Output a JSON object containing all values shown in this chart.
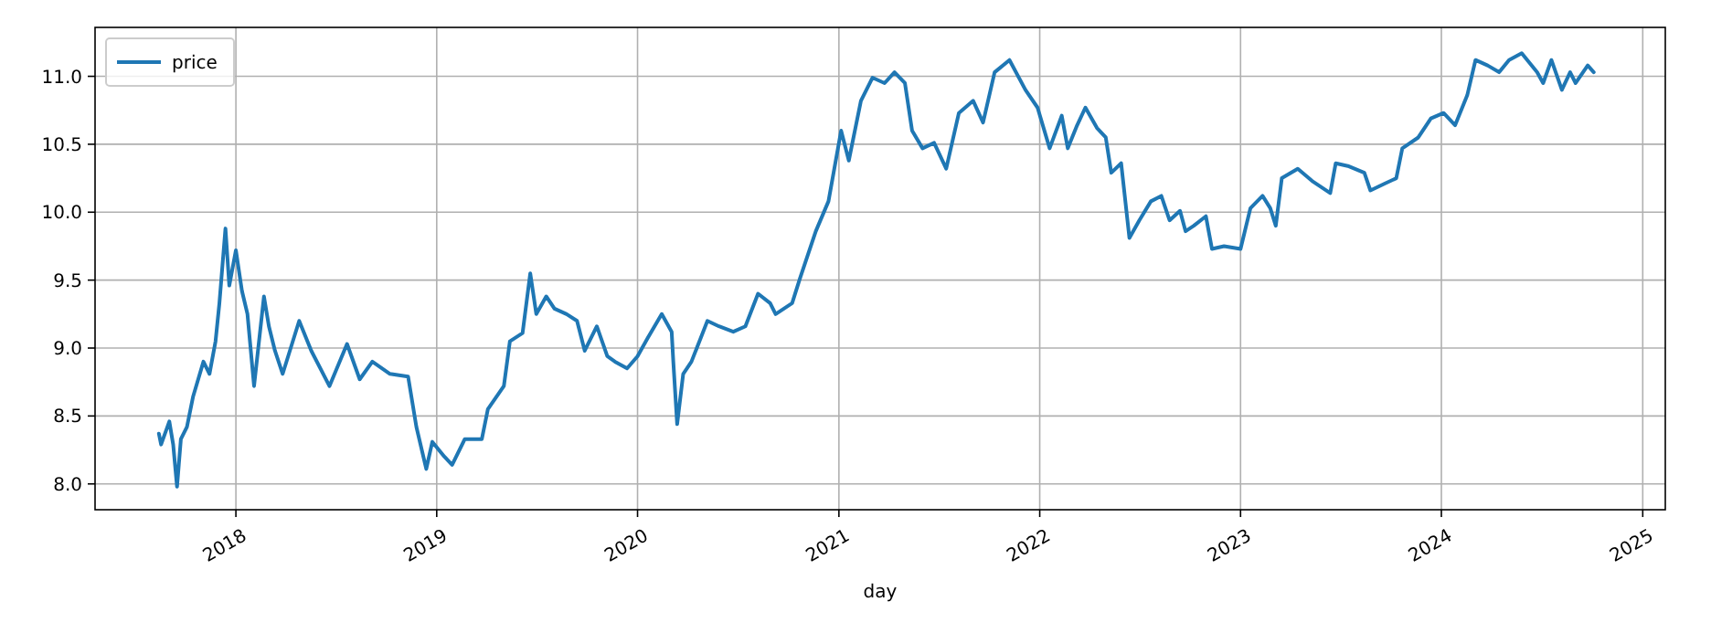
{
  "chart_data": {
    "type": "line",
    "xlabel": "day",
    "legend": "top left",
    "grid": true,
    "xlim": [
      "2017-04-20",
      "2025-02-11"
    ],
    "xticks": [
      "2018",
      "2019",
      "2020",
      "2021",
      "2022",
      "2023",
      "2024",
      "2025"
    ],
    "ylim": [
      7.81,
      11.36
    ],
    "yticks": [
      {
        "value": 8,
        "label": "8.0"
      },
      {
        "value": 8.5,
        "label": "8.5"
      },
      {
        "value": 9,
        "label": "9.0"
      },
      {
        "value": 9.5,
        "label": "9.5"
      },
      {
        "value": 10,
        "label": "10.0"
      },
      {
        "value": 10.5,
        "label": "10.5"
      },
      {
        "value": 11,
        "label": "11.0"
      }
    ],
    "x": [
      "2017-08-14",
      "2017-08-18",
      "2017-09-02",
      "2017-09-09",
      "2017-09-16",
      "2017-09-23",
      "2017-10-04",
      "2017-10-15",
      "2017-11-03",
      "2017-11-14",
      "2017-11-25",
      "2017-12-02",
      "2017-12-13",
      "2017-12-20",
      "2018-01-01",
      "2018-01-12",
      "2018-01-22",
      "2018-02-03",
      "2018-02-21",
      "2018-03-02",
      "2018-03-13",
      "2018-03-27",
      "2018-04-26",
      "2018-05-18",
      "2018-06-20",
      "2018-07-22",
      "2018-08-14",
      "2018-09-06",
      "2018-10-08",
      "2018-11-10",
      "2018-11-25",
      "2018-12-13",
      "2018-12-24",
      "2019-01-15",
      "2019-01-29",
      "2019-02-21",
      "2019-03-24",
      "2019-04-04",
      "2019-05-03",
      "2019-05-14",
      "2019-06-06",
      "2019-06-20",
      "2019-07-01",
      "2019-07-19",
      "2019-08-03",
      "2019-08-25",
      "2019-09-13",
      "2019-09-27",
      "2019-10-19",
      "2019-11-07",
      "2019-11-21",
      "2019-12-13",
      "2020-01-01",
      "2020-01-19",
      "2020-02-14",
      "2020-03-03",
      "2020-03-06",
      "2020-03-13",
      "2020-03-24",
      "2020-04-08",
      "2020-05-07",
      "2020-05-28",
      "2020-06-23",
      "2020-07-15",
      "2020-08-07",
      "2020-08-29",
      "2020-09-08",
      "2020-10-08",
      "2020-10-22",
      "2020-11-20",
      "2020-12-13",
      "2021-01-05",
      "2021-01-19",
      "2021-02-10",
      "2021-03-03",
      "2021-03-25",
      "2021-04-12",
      "2021-05-01",
      "2021-05-14",
      "2021-06-02",
      "2021-06-23",
      "2021-07-15",
      "2021-08-07",
      "2021-09-02",
      "2021-09-20",
      "2021-10-11",
      "2021-11-07",
      "2021-12-06",
      "2021-12-28",
      "2022-01-19",
      "2022-02-10",
      "2022-02-21",
      "2022-03-10",
      "2022-03-25",
      "2022-04-15",
      "2022-05-01",
      "2022-05-11",
      "2022-05-29",
      "2022-06-13",
      "2022-07-01",
      "2022-07-22",
      "2022-08-10",
      "2022-08-25",
      "2022-09-13",
      "2022-09-23",
      "2022-10-08",
      "2022-10-30",
      "2022-11-10",
      "2022-12-02",
      "2023-01-01",
      "2023-01-19",
      "2023-02-10",
      "2023-02-24",
      "2023-03-06",
      "2023-03-17",
      "2023-04-15",
      "2023-05-11",
      "2023-06-13",
      "2023-06-23",
      "2023-07-15",
      "2023-08-14",
      "2023-08-25",
      "2023-09-20",
      "2023-10-11",
      "2023-10-22",
      "2023-11-20",
      "2023-12-13",
      "2024-01-05",
      "2024-01-26",
      "2024-02-17",
      "2024-03-03",
      "2024-03-25",
      "2024-04-15",
      "2024-05-03",
      "2024-05-26",
      "2024-06-23",
      "2024-07-04",
      "2024-07-19",
      "2024-08-07",
      "2024-08-22",
      "2024-09-01",
      "2024-09-23",
      "2024-10-04"
    ],
    "series": [
      {
        "name": "price",
        "color": "#1f77b4",
        "values": [
          8.37,
          8.29,
          8.46,
          8.29,
          7.98,
          8.33,
          8.42,
          8.64,
          8.9,
          8.81,
          9.05,
          9.33,
          9.88,
          9.46,
          9.72,
          9.42,
          9.25,
          8.72,
          9.38,
          9.16,
          8.98,
          8.81,
          9.2,
          8.98,
          8.72,
          9.03,
          8.77,
          8.9,
          8.81,
          8.79,
          8.42,
          8.11,
          8.31,
          8.2,
          8.14,
          8.33,
          8.33,
          8.55,
          8.72,
          9.05,
          9.11,
          9.55,
          9.25,
          9.38,
          9.29,
          9.25,
          9.2,
          8.98,
          9.16,
          8.94,
          8.9,
          8.85,
          8.94,
          9.07,
          9.25,
          9.12,
          8.9,
          8.44,
          8.81,
          8.9,
          9.2,
          9.16,
          9.12,
          9.16,
          9.4,
          9.33,
          9.25,
          9.33,
          9.51,
          9.86,
          10.08,
          10.6,
          10.38,
          10.82,
          10.99,
          10.95,
          11.03,
          10.95,
          10.6,
          10.47,
          10.51,
          10.32,
          10.73,
          10.82,
          10.66,
          11.03,
          11.12,
          10.9,
          10.77,
          10.47,
          10.71,
          10.47,
          10.64,
          10.77,
          10.62,
          10.55,
          10.29,
          10.36,
          9.81,
          9.94,
          10.08,
          10.12,
          9.94,
          10.01,
          9.86,
          9.9,
          9.97,
          9.73,
          9.75,
          9.73,
          10.03,
          10.12,
          10.03,
          9.9,
          10.25,
          10.32,
          10.23,
          10.14,
          10.36,
          10.34,
          10.29,
          10.16,
          10.21,
          10.25,
          10.47,
          10.55,
          10.69,
          10.73,
          10.64,
          10.86,
          11.12,
          11.08,
          11.03,
          11.12,
          11.17,
          11.03,
          10.95,
          11.12,
          10.9,
          11.03,
          10.95,
          11.08,
          11.03
        ]
      }
    ]
  }
}
